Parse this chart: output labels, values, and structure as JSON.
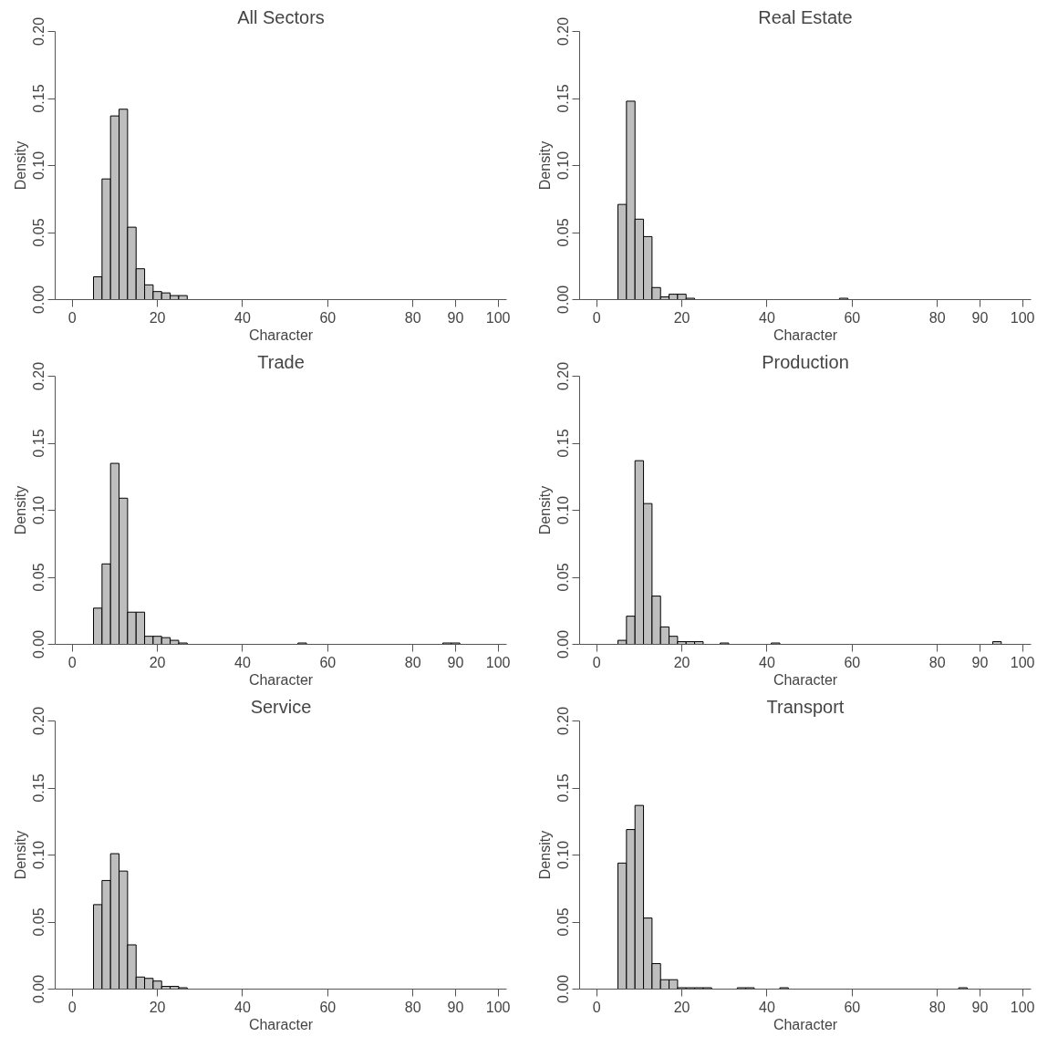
{
  "chart_data": [
    {
      "type": "histogram",
      "title": "All Sectors",
      "xlabel": "Character",
      "ylabel": "Density",
      "color": "#bebebe",
      "xlim": [
        -4,
        102
      ],
      "ylim": [
        0,
        0.2
      ],
      "xticks": [
        0,
        20,
        40,
        60,
        80,
        90,
        100
      ],
      "yticks": [
        {
          "value": 0,
          "label": "0.00"
        },
        {
          "value": 0.05,
          "label": "0.05"
        },
        {
          "value": 0.1,
          "label": "0.10"
        },
        {
          "value": 0.15,
          "label": "0.15"
        },
        {
          "value": 0.2,
          "label": "0.20"
        }
      ],
      "grid": false,
      "bins": [
        5,
        7,
        9,
        11,
        13,
        15,
        17,
        19,
        21,
        23,
        25,
        27,
        29,
        31,
        33,
        35,
        37,
        39,
        41,
        43,
        45,
        47,
        49,
        51,
        53,
        55,
        57,
        59,
        61,
        63,
        65,
        67,
        69,
        71,
        73,
        75,
        77,
        79,
        81,
        83,
        85,
        87,
        89,
        91,
        93,
        95
      ],
      "values": [
        0.017,
        0.09,
        0.137,
        0.142,
        0.054,
        0.023,
        0.011,
        0.006,
        0.005,
        0.003,
        0.003,
        0,
        0,
        0,
        0,
        0,
        0,
        0,
        0,
        0,
        0,
        0,
        0,
        0,
        0,
        0,
        0,
        0,
        0,
        0,
        0,
        0,
        0,
        0,
        0,
        0,
        0,
        0,
        0,
        0,
        0,
        0,
        0,
        0,
        0
      ]
    },
    {
      "type": "histogram",
      "title": "Real Estate",
      "xlabel": "Character",
      "ylabel": "Density",
      "color": "#bebebe",
      "xlim": [
        -4,
        102
      ],
      "ylim": [
        0,
        0.2
      ],
      "xticks": [
        0,
        20,
        40,
        60,
        80,
        90,
        100
      ],
      "yticks": [
        {
          "value": 0,
          "label": "0.00"
        },
        {
          "value": 0.05,
          "label": "0.05"
        },
        {
          "value": 0.1,
          "label": "0.10"
        },
        {
          "value": 0.15,
          "label": "0.15"
        },
        {
          "value": 0.2,
          "label": "0.20"
        }
      ],
      "grid": false,
      "bins": [
        5,
        7,
        9,
        11,
        13,
        15,
        17,
        19,
        21,
        23,
        25,
        27,
        29,
        31,
        33,
        35,
        37,
        39,
        41,
        43,
        45,
        47,
        49,
        51,
        53,
        55,
        57,
        59,
        61,
        63,
        65,
        67,
        69,
        71,
        73,
        75,
        77,
        79,
        81,
        83,
        85,
        87,
        89,
        91
      ],
      "values": [
        0.071,
        0.148,
        0.06,
        0.047,
        0.009,
        0.002,
        0.004,
        0.004,
        0.001,
        0,
        0,
        0,
        0,
        0,
        0,
        0,
        0,
        0,
        0,
        0,
        0,
        0,
        0,
        0,
        0,
        0,
        0.001,
        0,
        0,
        0,
        0,
        0,
        0,
        0,
        0,
        0,
        0,
        0,
        0,
        0,
        0,
        0,
        0
      ]
    },
    {
      "type": "histogram",
      "title": "Trade",
      "xlabel": "Character",
      "ylabel": "Density",
      "color": "#bebebe",
      "xlim": [
        -4,
        102
      ],
      "ylim": [
        0,
        0.2
      ],
      "xticks": [
        0,
        20,
        40,
        60,
        80,
        90,
        100
      ],
      "yticks": [
        {
          "value": 0,
          "label": "0.00"
        },
        {
          "value": 0.05,
          "label": "0.05"
        },
        {
          "value": 0.1,
          "label": "0.10"
        },
        {
          "value": 0.15,
          "label": "0.15"
        },
        {
          "value": 0.2,
          "label": "0.20"
        }
      ],
      "grid": false,
      "bins": [
        5,
        7,
        9,
        11,
        13,
        15,
        17,
        19,
        21,
        23,
        25,
        27,
        29,
        31,
        33,
        35,
        37,
        39,
        41,
        43,
        45,
        47,
        49,
        51,
        53,
        55,
        57,
        59,
        61,
        63,
        65,
        67,
        69,
        71,
        73,
        75,
        77,
        79,
        81,
        83,
        85,
        87,
        89,
        91,
        93
      ],
      "values": [
        0.027,
        0.06,
        0.135,
        0.109,
        0.024,
        0.024,
        0.006,
        0.006,
        0.005,
        0.003,
        0.001,
        0,
        0,
        0,
        0,
        0,
        0,
        0,
        0,
        0,
        0,
        0,
        0,
        0,
        0.001,
        0,
        0,
        0,
        0,
        0,
        0,
        0,
        0,
        0,
        0,
        0,
        0,
        0,
        0,
        0,
        0,
        0.001,
        0.001,
        0
      ]
    },
    {
      "type": "histogram",
      "title": "Production",
      "xlabel": "Character",
      "ylabel": "Density",
      "color": "#bebebe",
      "xlim": [
        -4,
        102
      ],
      "ylim": [
        0,
        0.2
      ],
      "xticks": [
        0,
        20,
        40,
        60,
        80,
        90,
        100
      ],
      "yticks": [
        {
          "value": 0,
          "label": "0.00"
        },
        {
          "value": 0.05,
          "label": "0.05"
        },
        {
          "value": 0.1,
          "label": "0.10"
        },
        {
          "value": 0.15,
          "label": "0.15"
        },
        {
          "value": 0.2,
          "label": "0.20"
        }
      ],
      "grid": false,
      "bins": [
        5,
        7,
        9,
        11,
        13,
        15,
        17,
        19,
        21,
        23,
        25,
        27,
        29,
        31,
        33,
        35,
        37,
        39,
        41,
        43,
        45,
        47,
        49,
        51,
        53,
        55,
        57,
        59,
        61,
        63,
        65,
        67,
        69,
        71,
        73,
        75,
        77,
        79,
        81,
        83,
        85,
        87,
        89,
        91,
        93,
        95
      ],
      "values": [
        0.003,
        0.021,
        0.137,
        0.105,
        0.036,
        0.013,
        0.006,
        0.002,
        0.002,
        0.002,
        0,
        0,
        0.001,
        0,
        0,
        0,
        0,
        0,
        0.001,
        0,
        0,
        0,
        0,
        0,
        0,
        0,
        0,
        0,
        0,
        0,
        0,
        0,
        0,
        0,
        0,
        0,
        0,
        0,
        0,
        0,
        0,
        0,
        0,
        0,
        0.002
      ]
    },
    {
      "type": "histogram",
      "title": "Service",
      "xlabel": "Character",
      "ylabel": "Density",
      "color": "#bebebe",
      "xlim": [
        -4,
        102
      ],
      "ylim": [
        0,
        0.2
      ],
      "xticks": [
        0,
        20,
        40,
        60,
        80,
        90,
        100
      ],
      "yticks": [
        {
          "value": 0,
          "label": "0.00"
        },
        {
          "value": 0.05,
          "label": "0.05"
        },
        {
          "value": 0.1,
          "label": "0.10"
        },
        {
          "value": 0.15,
          "label": "0.15"
        },
        {
          "value": 0.2,
          "label": "0.20"
        }
      ],
      "grid": false,
      "bins": [
        5,
        7,
        9,
        11,
        13,
        15,
        17,
        19,
        21,
        23,
        25,
        27,
        29,
        31,
        33,
        35,
        37,
        39,
        41,
        43,
        45,
        47,
        49,
        51,
        53,
        55,
        57,
        59,
        61,
        63,
        65,
        67,
        69,
        71,
        73,
        75,
        77,
        79,
        81,
        83,
        85,
        87,
        89,
        91,
        93,
        95
      ],
      "values": [
        0.063,
        0.081,
        0.101,
        0.088,
        0.033,
        0.009,
        0.008,
        0.006,
        0.002,
        0.002,
        0.001,
        0,
        0,
        0,
        0,
        0,
        0,
        0,
        0,
        0,
        0,
        0,
        0,
        0,
        0,
        0,
        0,
        0,
        0,
        0,
        0,
        0,
        0,
        0,
        0,
        0,
        0,
        0,
        0,
        0,
        0,
        0,
        0,
        0,
        0
      ]
    },
    {
      "type": "histogram",
      "title": "Transport",
      "xlabel": "Character",
      "ylabel": "Density",
      "color": "#bebebe",
      "xlim": [
        -4,
        102
      ],
      "ylim": [
        0,
        0.2
      ],
      "xticks": [
        0,
        20,
        40,
        60,
        80,
        90,
        100
      ],
      "yticks": [
        {
          "value": 0,
          "label": "0.00"
        },
        {
          "value": 0.05,
          "label": "0.05"
        },
        {
          "value": 0.1,
          "label": "0.10"
        },
        {
          "value": 0.15,
          "label": "0.15"
        },
        {
          "value": 0.2,
          "label": "0.20"
        }
      ],
      "grid": false,
      "bins": [
        5,
        7,
        9,
        11,
        13,
        15,
        17,
        19,
        21,
        23,
        25,
        27,
        29,
        31,
        33,
        35,
        37,
        39,
        41,
        43,
        45,
        47,
        49,
        51,
        53,
        55,
        57,
        59,
        61,
        63,
        65,
        67,
        69,
        71,
        73,
        75,
        77,
        79,
        81,
        83,
        85,
        87
      ],
      "values": [
        0.094,
        0.119,
        0.137,
        0.053,
        0.019,
        0.007,
        0.007,
        0.001,
        0.001,
        0.001,
        0.001,
        0,
        0,
        0,
        0.001,
        0.001,
        0,
        0,
        0,
        0.001,
        0,
        0,
        0,
        0,
        0,
        0,
        0,
        0,
        0,
        0,
        0,
        0,
        0,
        0,
        0,
        0,
        0,
        0,
        0,
        0,
        0.001
      ]
    }
  ]
}
